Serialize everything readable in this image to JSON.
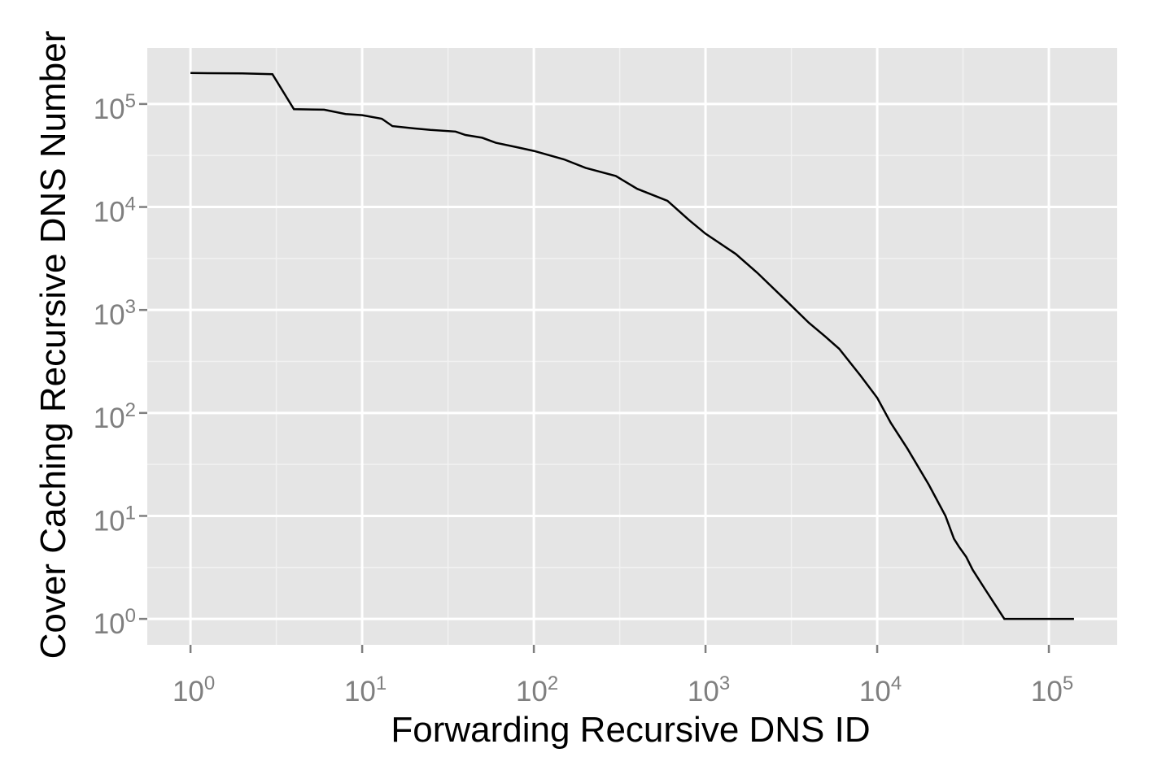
{
  "chart_data": {
    "type": "line",
    "xlabel": "Forwarding Recursive DNS ID",
    "ylabel": "Cover Caching Recursive DNS Number",
    "x_scale": "log10",
    "y_scale": "log10",
    "xlim": [
      0.56,
      250000
    ],
    "ylim": [
      0.56,
      350000
    ],
    "grid": true,
    "x_ticks": [
      {
        "value": 1,
        "base": "10",
        "exp": "0"
      },
      {
        "value": 10,
        "base": "10",
        "exp": "1"
      },
      {
        "value": 100,
        "base": "10",
        "exp": "2"
      },
      {
        "value": 1000,
        "base": "10",
        "exp": "3"
      },
      {
        "value": 10000,
        "base": "10",
        "exp": "4"
      },
      {
        "value": 100000,
        "base": "10",
        "exp": "5"
      }
    ],
    "y_ticks": [
      {
        "value": 1,
        "base": "10",
        "exp": "0"
      },
      {
        "value": 10,
        "base": "10",
        "exp": "1"
      },
      {
        "value": 100,
        "base": "10",
        "exp": "2"
      },
      {
        "value": 1000,
        "base": "10",
        "exp": "3"
      },
      {
        "value": 10000,
        "base": "10",
        "exp": "4"
      },
      {
        "value": 100000,
        "base": "10",
        "exp": "5"
      }
    ],
    "series": [
      {
        "color": "#000000",
        "points": [
          [
            1,
            200000
          ],
          [
            2,
            198000
          ],
          [
            3,
            195000
          ],
          [
            4,
            89000
          ],
          [
            6,
            88000
          ],
          [
            8,
            80000
          ],
          [
            10,
            78000
          ],
          [
            13,
            72000
          ],
          [
            15,
            61000
          ],
          [
            20,
            58000
          ],
          [
            25,
            56000
          ],
          [
            35,
            54000
          ],
          [
            40,
            50000
          ],
          [
            50,
            47000
          ],
          [
            60,
            42000
          ],
          [
            80,
            38000
          ],
          [
            100,
            35000
          ],
          [
            150,
            29000
          ],
          [
            200,
            24000
          ],
          [
            300,
            20000
          ],
          [
            400,
            15000
          ],
          [
            600,
            11500
          ],
          [
            800,
            7500
          ],
          [
            1000,
            5500
          ],
          [
            1500,
            3500
          ],
          [
            2000,
            2300
          ],
          [
            3000,
            1200
          ],
          [
            4000,
            750
          ],
          [
            5000,
            550
          ],
          [
            6000,
            420
          ],
          [
            8000,
            230
          ],
          [
            10000,
            140
          ],
          [
            12000,
            80
          ],
          [
            15000,
            45
          ],
          [
            20000,
            20
          ],
          [
            25000,
            10
          ],
          [
            28000,
            6
          ],
          [
            30000,
            5
          ],
          [
            33000,
            4
          ],
          [
            36000,
            3
          ],
          [
            42000,
            2
          ],
          [
            55000,
            1
          ],
          [
            140000,
            1
          ]
        ]
      }
    ]
  }
}
